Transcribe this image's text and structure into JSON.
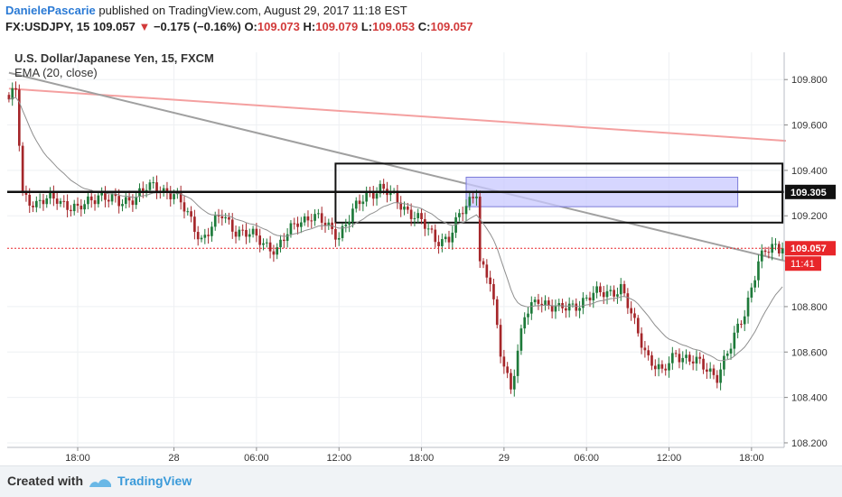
{
  "header": {
    "author": "DanielePascarie",
    "published": "published on TradingView.com, August 29, 2017 11:18 EST",
    "symbol": "FX:USDJPY, 15",
    "last": "109.057",
    "change": "−0.175 (−0.16%)",
    "open_label": "O:",
    "open": "109.073",
    "high_label": "H:",
    "high": "109.079",
    "low_label": "L:",
    "low": "109.053",
    "close_label": "C:",
    "close": "109.057"
  },
  "legend": {
    "title": "U.S. Dollar/Japanese Yen, 15, FXCM",
    "indicator": "EMA (20, close)"
  },
  "footer": {
    "created_with": "Created with",
    "brand": "TradingView"
  },
  "colors": {
    "up": "#1e7a3a",
    "down": "#a5262a",
    "ema": "#8f8f8f",
    "trend_red": "#f4a0a0",
    "trend_gray": "#a0a0a0",
    "rect_fill": "#c8c8ff",
    "last_price": "#e8262a"
  },
  "chart_data": {
    "type": "candlestick",
    "title": "U.S. Dollar/Japanese Yen, 15, FXCM",
    "ylim": [
      108.18,
      109.92
    ],
    "y_ticks": [
      "109.800",
      "109.600",
      "109.400",
      "109.200",
      "108.800",
      "108.600",
      "108.400",
      "108.200"
    ],
    "x_ticks": [
      "18:00",
      "28",
      "06:00",
      "12:00",
      "18:00",
      "29",
      "06:00",
      "12:00",
      "18:00"
    ],
    "x_tick_index": [
      20,
      48,
      72,
      96,
      120,
      144,
      168,
      192,
      216
    ],
    "n_bars": 226,
    "close_anchors": [
      [
        0,
        109.7
      ],
      [
        2,
        109.75
      ],
      [
        4,
        109.3
      ],
      [
        8,
        109.25
      ],
      [
        14,
        109.28
      ],
      [
        20,
        109.22
      ],
      [
        26,
        109.3
      ],
      [
        32,
        109.25
      ],
      [
        40,
        109.32
      ],
      [
        44,
        109.32
      ],
      [
        48,
        109.3
      ],
      [
        52,
        109.2
      ],
      [
        56,
        109.1
      ],
      [
        62,
        109.2
      ],
      [
        66,
        109.14
      ],
      [
        72,
        109.1
      ],
      [
        78,
        109.05
      ],
      [
        84,
        109.18
      ],
      [
        88,
        109.2
      ],
      [
        96,
        109.12
      ],
      [
        104,
        109.3
      ],
      [
        108,
        109.32
      ],
      [
        112,
        109.28
      ],
      [
        118,
        109.2
      ],
      [
        124,
        109.1
      ],
      [
        128,
        109.1
      ],
      [
        132,
        109.22
      ],
      [
        136,
        109.32
      ],
      [
        137,
        109.0
      ],
      [
        140,
        108.9
      ],
      [
        143,
        108.6
      ],
      [
        146,
        108.45
      ],
      [
        150,
        108.75
      ],
      [
        154,
        108.84
      ],
      [
        160,
        108.78
      ],
      [
        166,
        108.82
      ],
      [
        172,
        108.86
      ],
      [
        178,
        108.88
      ],
      [
        182,
        108.72
      ],
      [
        186,
        108.58
      ],
      [
        190,
        108.5
      ],
      [
        194,
        108.6
      ],
      [
        200,
        108.55
      ],
      [
        206,
        108.5
      ],
      [
        210,
        108.62
      ],
      [
        214,
        108.78
      ],
      [
        218,
        109.0
      ],
      [
        222,
        109.06
      ],
      [
        225,
        109.057
      ]
    ],
    "ema_length": 20,
    "price_marker": {
      "value": "109.057",
      "time_left": "11:41"
    },
    "level_marker": {
      "value": "109.305"
    },
    "trend_lines": [
      {
        "name": "upper-red-trendline",
        "from": [
          0,
          109.76
        ],
        "to": [
          226,
          109.53
        ]
      },
      {
        "name": "descending-gray-trendline",
        "from": [
          0,
          109.83
        ],
        "to": [
          226,
          109.0
        ]
      }
    ],
    "horizontal_lines": [
      {
        "name": "support-resistance-line",
        "value": 109.305
      },
      {
        "name": "last-price-line",
        "value": 109.057
      }
    ],
    "boxes": [
      {
        "name": "consolidation-box",
        "x": [
          95,
          225
        ],
        "y": [
          109.17,
          109.43
        ]
      },
      {
        "name": "supply-zone-box",
        "x": [
          133,
          212
        ],
        "y": [
          109.24,
          109.37
        ]
      }
    ]
  }
}
